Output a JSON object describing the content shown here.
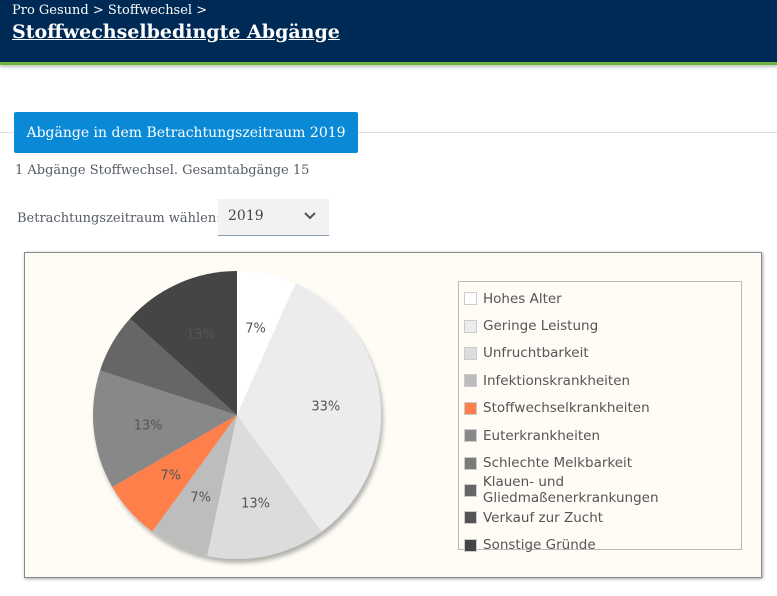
{
  "header": {
    "breadcrumb": "Pro Gesund > Stoffwechsel >",
    "title": "Stoffwechselbedingte Abgänge"
  },
  "tab": {
    "label": "Abgänge in dem Betrachtungszeitraum 2019"
  },
  "summary": "1 Abgänge Stoffwechsel. Gesamtabgänge 15",
  "period": {
    "label": "Betrachtungszeitraum wählen:",
    "value": "2019"
  },
  "chart_data": {
    "type": "pie",
    "categories": [
      "Hohes Alter",
      "Geringe Leistung",
      "Unfruchtbarkeit",
      "Infektionskrankheiten",
      "Stoffwechselkrankheiten",
      "Euterkrankheiten",
      "Schlechte Melkbarkeit",
      "Klauen- und Gliedmaßenerkrankungen",
      "Verkauf zur Zucht",
      "Sonstige Gründe"
    ],
    "values": [
      1,
      5,
      2,
      1,
      1,
      2,
      0,
      1,
      0,
      2
    ],
    "labels": [
      "7%",
      "33%",
      "13%",
      "7%",
      "7%",
      "13%",
      null,
      null,
      null,
      "13%"
    ],
    "colors": [
      "#ffffff",
      "#ececec",
      "#dcdcdc",
      "#bdbdbd",
      "#ff7f4c",
      "#888888",
      "#7a7a7a",
      "#666666",
      "#555555",
      "#454545"
    ],
    "legend_position": "right"
  }
}
